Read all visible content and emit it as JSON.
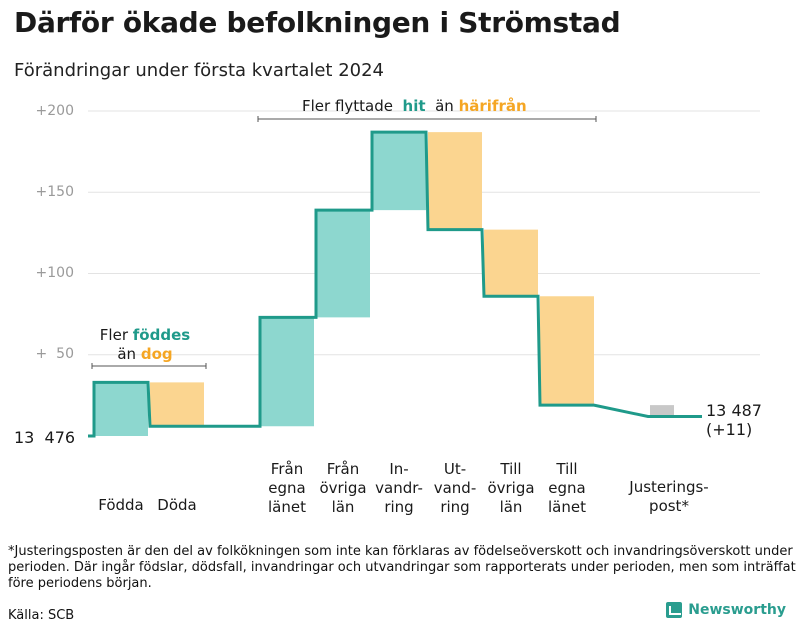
{
  "title": "Därför ökade befolkningen i Strömstad",
  "subtitle": "Förändringar under första kvartalet 2024",
  "colors": {
    "increase": "#8dd7cf",
    "decrease": "#fbd590",
    "adjustment": "#c8c8c8",
    "line": "#1f9a8a",
    "bracket": "#555555"
  },
  "chart_data": {
    "type": "waterfall",
    "baseline_label": "13  476",
    "start_value": 13476,
    "end_value": 13487,
    "end_label": "13 487",
    "end_change_label": "(+11)",
    "y_axis": {
      "ticks": [
        {
          "value": 50,
          "label": "+  50"
        },
        {
          "value": 100,
          "label": "+100"
        },
        {
          "value": 150,
          "label": "+150"
        },
        {
          "value": 200,
          "label": "+200"
        }
      ],
      "ylim": [
        0,
        200
      ],
      "unit": "change relative to start"
    },
    "steps": [
      {
        "label": "Födda",
        "change": 33,
        "kind": "increase"
      },
      {
        "label": "Döda",
        "change": -27,
        "kind": "decrease"
      },
      {
        "label": "Från egna länet",
        "change": 67,
        "kind": "increase"
      },
      {
        "label": "Från övriga län",
        "change": 66,
        "kind": "increase"
      },
      {
        "label": "In-vandring",
        "change": 48,
        "kind": "increase"
      },
      {
        "label": "Ut-vandring",
        "change": -60,
        "kind": "decrease"
      },
      {
        "label": "Till övriga län",
        "change": -41,
        "kind": "decrease"
      },
      {
        "label": "Till egna länet",
        "change": -67,
        "kind": "decrease"
      },
      {
        "label": "Justerings-post*",
        "change": -7,
        "kind": "adjustment"
      }
    ],
    "annotations": {
      "births_deaths": {
        "prefix": "Fler",
        "highlight1": "föddes",
        "mid": "än",
        "highlight2": "dog"
      },
      "migration": {
        "prefix": "Fler flyttade",
        "highlight1": "hit",
        "mid": "än",
        "highlight2": "härifrån"
      }
    }
  },
  "x_labels": [
    {
      "lines": [
        "Födda"
      ]
    },
    {
      "lines": [
        "Döda"
      ]
    },
    {
      "lines": [
        "Från",
        "egna",
        "länet"
      ]
    },
    {
      "lines": [
        "Från",
        "övriga",
        "län"
      ]
    },
    {
      "lines": [
        "In-",
        "vandr-",
        "ring"
      ]
    },
    {
      "lines": [
        "Ut-",
        "vand-",
        "ring"
      ]
    },
    {
      "lines": [
        "Till",
        "övriga",
        "län"
      ]
    },
    {
      "lines": [
        "Till",
        "egna",
        "länet"
      ]
    },
    {
      "lines": [
        "Justerings-",
        "post*"
      ]
    }
  ],
  "footnote": "*Justeringsposten är den del av folkökningen som inte kan förklaras av födelseöverskott och invandringsöverskott under perioden. Där ingår födslar, dödsfall, invandringar och utvandringar som rapporterats under perioden, men som inträffat före periodens början.",
  "source": "Källa: SCB",
  "brand": "Newsworthy"
}
